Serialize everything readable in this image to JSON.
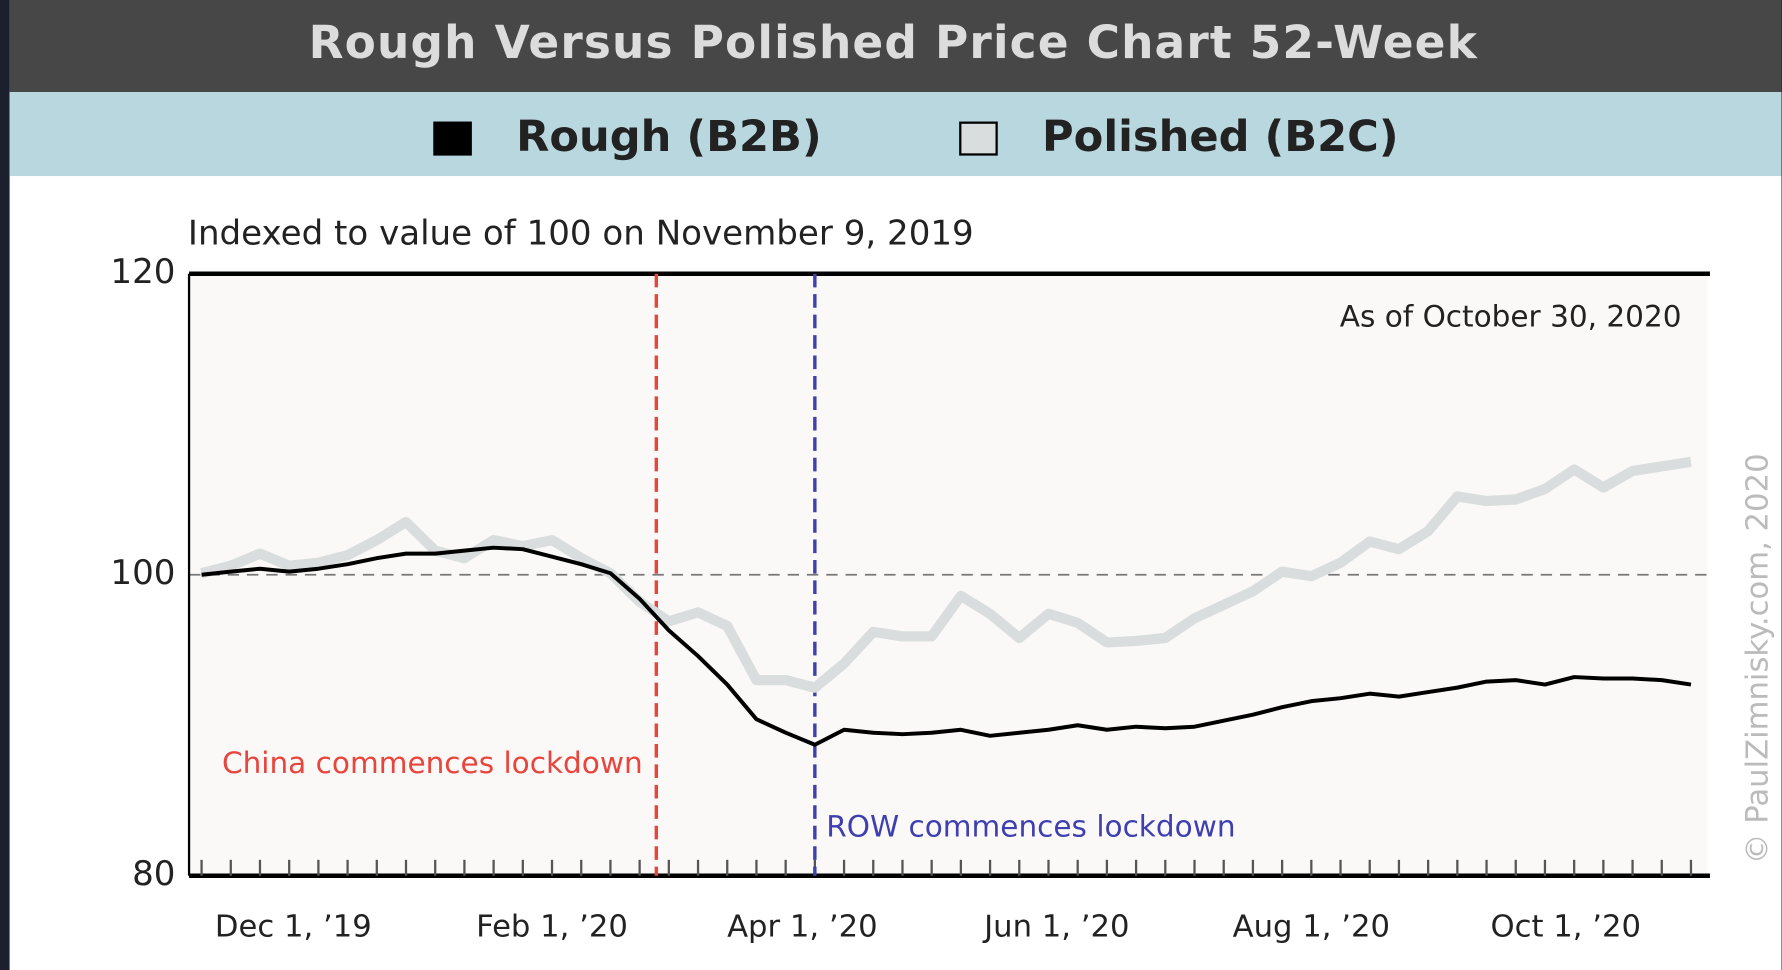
{
  "chart_data": {
    "type": "line",
    "title": "Rough Versus Polished Price Chart 52-Week",
    "subtitle": "Indexed to value of 100 on November 9, 2019",
    "note": "As of October 30, 2020",
    "credit": "© PaulZimnisky.com, 2020",
    "x": [
      "2019-11-09",
      "2019-11-16",
      "2019-11-23",
      "2019-11-30",
      "2019-12-07",
      "2019-12-14",
      "2019-12-21",
      "2019-12-28",
      "2020-01-04",
      "2020-01-11",
      "2020-01-18",
      "2020-01-25",
      "2020-02-01",
      "2020-02-08",
      "2020-02-15",
      "2020-02-22",
      "2020-02-29",
      "2020-03-07",
      "2020-03-14",
      "2020-03-21",
      "2020-03-28",
      "2020-04-04",
      "2020-04-11",
      "2020-04-18",
      "2020-04-25",
      "2020-05-02",
      "2020-05-09",
      "2020-05-16",
      "2020-05-23",
      "2020-05-30",
      "2020-06-06",
      "2020-06-13",
      "2020-06-20",
      "2020-06-27",
      "2020-07-04",
      "2020-07-11",
      "2020-07-18",
      "2020-07-25",
      "2020-08-01",
      "2020-08-08",
      "2020-08-15",
      "2020-08-22",
      "2020-08-29",
      "2020-09-05",
      "2020-09-12",
      "2020-09-19",
      "2020-09-26",
      "2020-10-03",
      "2020-10-10",
      "2020-10-17",
      "2020-10-24",
      "2020-10-31"
    ],
    "series": [
      {
        "name": "Rough (B2B)",
        "color": "#000000",
        "values": [
          100.0,
          100.2,
          100.4,
          100.2,
          100.4,
          100.7,
          101.1,
          101.4,
          101.4,
          101.6,
          101.8,
          101.7,
          101.2,
          100.7,
          100.1,
          98.4,
          96.3,
          94.6,
          92.7,
          90.4,
          89.5,
          88.7,
          89.7,
          89.5,
          89.4,
          89.5,
          89.7,
          89.3,
          89.5,
          89.7,
          90.0,
          89.7,
          89.9,
          89.8,
          89.9,
          90.3,
          90.7,
          91.2,
          91.6,
          91.8,
          92.1,
          91.9,
          92.2,
          92.5,
          92.9,
          93.0,
          92.7,
          93.2,
          93.1,
          93.1,
          93.0,
          92.7
        ]
      },
      {
        "name": "Polished (B2C)",
        "color": "#d9dddd",
        "values": [
          100.1,
          100.6,
          101.4,
          100.6,
          100.8,
          101.3,
          102.3,
          103.5,
          101.6,
          101.1,
          102.3,
          101.9,
          102.3,
          101.1,
          100.1,
          98.2,
          96.9,
          97.5,
          96.6,
          93.0,
          93.0,
          92.5,
          94.1,
          96.2,
          95.9,
          95.9,
          98.6,
          97.4,
          95.8,
          97.4,
          96.8,
          95.5,
          95.6,
          95.8,
          97.1,
          98.0,
          98.9,
          100.2,
          99.9,
          100.8,
          102.2,
          101.7,
          102.9,
          105.2,
          104.9,
          105.0,
          105.7,
          107.0,
          105.8,
          106.9,
          107.2,
          107.5
        ]
      }
    ],
    "xlim": [
      "2019-11-06",
      "2020-11-04"
    ],
    "xticks": [
      {
        "value": "2019-12-01",
        "label": "Dec 1, ’19"
      },
      {
        "value": "2020-02-01",
        "label": "Feb 1, ’20"
      },
      {
        "value": "2020-04-01",
        "label": "Apr 1, ’20"
      },
      {
        "value": "2020-06-01",
        "label": "Jun 1, ’20"
      },
      {
        "value": "2020-08-01",
        "label": "Aug 1, ’20"
      },
      {
        "value": "2020-10-01",
        "label": "Oct 1, ’20"
      }
    ],
    "ylim": [
      80,
      120
    ],
    "yticks": [
      80,
      100,
      120
    ],
    "reference_line": 100,
    "annotations": [
      {
        "text": "China commences lockdown",
        "x": "2020-02-26",
        "color": "#e8453c"
      },
      {
        "text": "ROW commences lockdown",
        "x": "2020-04-04",
        "color": "#3f3fb0"
      }
    ]
  }
}
